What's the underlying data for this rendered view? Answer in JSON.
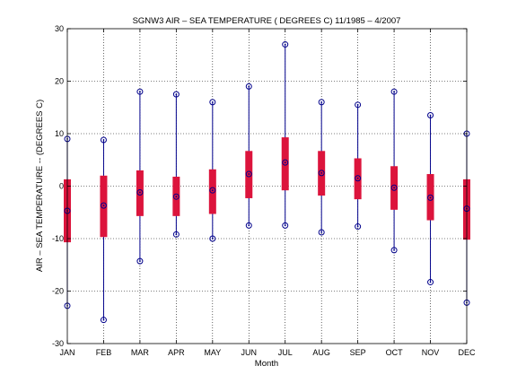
{
  "chart_data": {
    "type": "box",
    "title": "SGNW3  AIR – SEA TEMPERATURE ( DEGREES C) 11/1985 – 4/2007",
    "xlabel": "Month",
    "ylabel": "AIR – SEA TEMPERATURE -- (DEGREES C)",
    "ylim": [
      -30,
      30
    ],
    "yticks": [
      -30,
      -20,
      -10,
      0,
      10,
      20,
      30
    ],
    "grid": true,
    "categories": [
      "JAN",
      "FEB",
      "MAR",
      "APR",
      "MAY",
      "JUN",
      "JUL",
      "AUG",
      "SEP",
      "OCT",
      "NOV",
      "DEC"
    ],
    "max": [
      9,
      8.8,
      18,
      17.5,
      16,
      19,
      27,
      16,
      15.5,
      18,
      13.5,
      10
    ],
    "min": [
      -22.8,
      -25.5,
      -14.3,
      -9.2,
      -10,
      -7.5,
      -7.5,
      -8.8,
      -7.7,
      -12.2,
      -18.3,
      -22.2
    ],
    "median": [
      -4.7,
      -3.7,
      -1.2,
      -2,
      -0.8,
      2.3,
      4.5,
      2.5,
      1.5,
      -0.3,
      -2.2,
      -4.3
    ],
    "q1": [
      -10.7,
      -9.7,
      -5.7,
      -5.7,
      -5.3,
      -2.3,
      -0.8,
      -1.8,
      -2.5,
      -4.5,
      -6.5,
      -10.2
    ],
    "q3": [
      1.3,
      2,
      3,
      1.8,
      3.2,
      6.7,
      9.3,
      6.7,
      5.3,
      3.8,
      2.3,
      1.3
    ],
    "colors": {
      "whisker": "#00008b",
      "box": "#dc143c",
      "marker": "#00008b"
    }
  }
}
